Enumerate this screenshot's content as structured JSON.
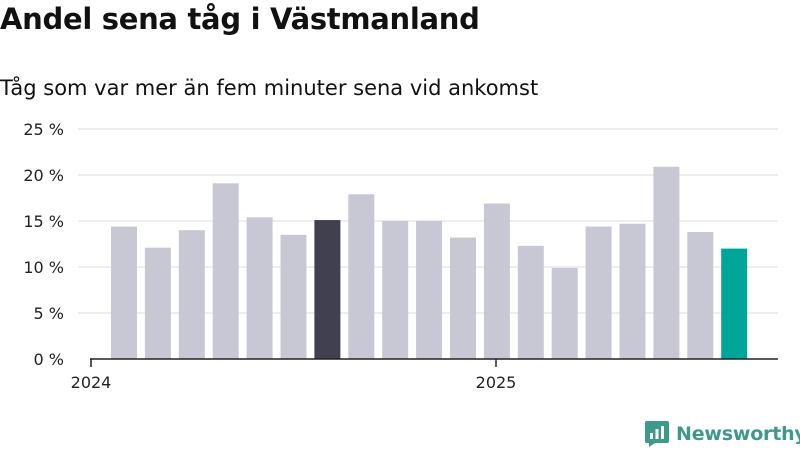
{
  "chart_data": {
    "type": "bar",
    "title": "Andel sena tåg i Västmanland",
    "subtitle": "Tåg som var mer än fem minuter sena vid ankomst",
    "xlabel": "",
    "ylabel": "",
    "x_tick_labels": [
      "2024",
      "2025"
    ],
    "y_ticks": [
      {
        "value": 0,
        "label": "0 %"
      },
      {
        "value": 5,
        "label": "5 %"
      },
      {
        "value": 10,
        "label": "10 %"
      },
      {
        "value": 15,
        "label": "15 %"
      },
      {
        "value": 20,
        "label": "20 %"
      },
      {
        "value": 25,
        "label": "25 %"
      }
    ],
    "ylim": [
      0,
      25
    ],
    "grid": true,
    "values": [
      14.4,
      12.1,
      14.0,
      19.1,
      15.4,
      13.5,
      15.1,
      17.9,
      15.0,
      15.0,
      13.2,
      16.9,
      12.3,
      9.9,
      14.4,
      14.7,
      20.9,
      13.8,
      12.0
    ],
    "bar_colors": [
      "#c8c8d4",
      "#c8c8d4",
      "#c8c8d4",
      "#c8c8d4",
      "#c8c8d4",
      "#c8c8d4",
      "#40404e",
      "#c8c8d4",
      "#c8c8d4",
      "#c8c8d4",
      "#c8c8d4",
      "#c8c8d4",
      "#c8c8d4",
      "#c8c8d4",
      "#c8c8d4",
      "#c8c8d4",
      "#c8c8d4",
      "#c8c8d4",
      "#00a599"
    ],
    "colors": {
      "default_bar": "#c8c8d4",
      "highlight_bar": "#40404e",
      "latest_bar": "#00a599",
      "grid": "#dddddd",
      "axis": "#222222"
    }
  },
  "brand": {
    "name": "Newsworthy",
    "icon": "newsworthy-logo-icon",
    "color": "#3d9a8b"
  }
}
